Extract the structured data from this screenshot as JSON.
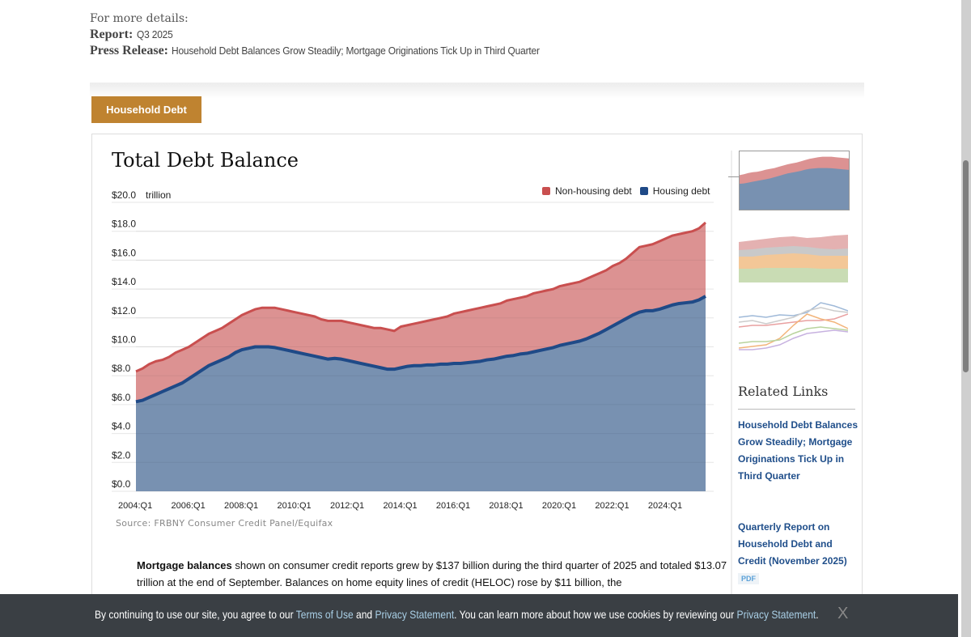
{
  "details": {
    "intro": "For more details:",
    "report_label": "Report:",
    "report_value": "Q3 2025",
    "press_label": "Press Release:",
    "press_value": "Household Debt Balances Grow Steadily; Mortgage Originations Tick Up in Third Quarter"
  },
  "tab": {
    "label": "Household Debt",
    "color": "#bf8330"
  },
  "chart_data": {
    "type": "area",
    "stacked": true,
    "title": "Total Debt Balance",
    "ylabel": "trillion",
    "yunit_prefix": "$",
    "ylim": [
      0,
      20
    ],
    "yticks": [
      "$0.0",
      "$2.0",
      "$4.0",
      "$6.0",
      "$8.0",
      "$10.0",
      "$12.0",
      "$14.0",
      "$16.0",
      "$18.0",
      "$20.0"
    ],
    "ytick_values": [
      0,
      2,
      4,
      6,
      8,
      10,
      12,
      14,
      16,
      18,
      20
    ],
    "xtick_labels": [
      "2004:Q1",
      "2006:Q1",
      "2008:Q1",
      "2010:Q1",
      "2012:Q1",
      "2014:Q1",
      "2016:Q1",
      "2018:Q1",
      "2020:Q1",
      "2022:Q1",
      "2024:Q1"
    ],
    "xtick_index": [
      0,
      8,
      16,
      24,
      32,
      40,
      48,
      56,
      64,
      72,
      80
    ],
    "x_start": "2004:Q1",
    "x_end": "2025:Q3",
    "grid": true,
    "legend_position": "top-right",
    "series": [
      {
        "name": "Non-housing debt",
        "color": "#c94f4f",
        "fill": "#dc9292",
        "total_values": [
          8.3,
          8.5,
          8.8,
          9.0,
          9.1,
          9.3,
          9.6,
          9.8,
          10.0,
          10.3,
          10.6,
          10.9,
          11.1,
          11.3,
          11.6,
          11.9,
          12.2,
          12.4,
          12.6,
          12.7,
          12.7,
          12.7,
          12.6,
          12.5,
          12.4,
          12.3,
          12.2,
          12.1,
          11.9,
          11.8,
          11.8,
          11.8,
          11.7,
          11.6,
          11.5,
          11.4,
          11.3,
          11.3,
          11.2,
          11.1,
          11.4,
          11.5,
          11.6,
          11.7,
          11.8,
          11.9,
          12.0,
          12.1,
          12.3,
          12.4,
          12.5,
          12.6,
          12.7,
          12.8,
          12.9,
          13.0,
          13.2,
          13.3,
          13.4,
          13.5,
          13.7,
          13.8,
          13.9,
          14.0,
          14.2,
          14.3,
          14.4,
          14.5,
          14.7,
          14.9,
          15.1,
          15.3,
          15.6,
          15.8,
          16.1,
          16.5,
          16.9,
          17.0,
          17.1,
          17.3,
          17.5,
          17.7,
          17.8,
          17.9,
          18.0,
          18.2,
          18.6
        ]
      },
      {
        "name": "Housing debt",
        "color": "#1f4a87",
        "fill": "#7891b1",
        "values": [
          6.2,
          6.3,
          6.5,
          6.7,
          6.9,
          7.1,
          7.3,
          7.5,
          7.8,
          8.1,
          8.4,
          8.7,
          8.9,
          9.1,
          9.3,
          9.6,
          9.8,
          9.9,
          10.0,
          10.0,
          10.0,
          9.95,
          9.85,
          9.75,
          9.65,
          9.55,
          9.45,
          9.35,
          9.25,
          9.15,
          9.2,
          9.15,
          9.05,
          8.95,
          8.85,
          8.75,
          8.65,
          8.55,
          8.45,
          8.45,
          8.55,
          8.65,
          8.7,
          8.7,
          8.75,
          8.75,
          8.8,
          8.8,
          8.85,
          8.85,
          8.9,
          8.95,
          9.0,
          9.1,
          9.15,
          9.25,
          9.35,
          9.4,
          9.5,
          9.55,
          9.65,
          9.75,
          9.85,
          9.95,
          10.1,
          10.2,
          10.3,
          10.4,
          10.55,
          10.75,
          10.95,
          11.2,
          11.45,
          11.7,
          11.95,
          12.2,
          12.4,
          12.5,
          12.5,
          12.6,
          12.75,
          12.9,
          13.0,
          13.05,
          13.1,
          13.25,
          13.5
        ]
      }
    ],
    "source": "Source: FRBNY Consumer Credit Panel/Equifax"
  },
  "body": {
    "bold_lead": "Mortgage balances",
    "text": " shown on consumer credit reports grew by $137 billion during the third quarter of 2025 and totaled $13.07 trillion at the end of September. Balances on home equity lines of credit (HELOC) rose by $11 billion, the"
  },
  "sidebar": {
    "thumbnails": [
      {
        "name": "total-debt-balance",
        "active": true
      },
      {
        "name": "debt-composition",
        "active": false
      },
      {
        "name": "line-series",
        "active": false
      }
    ],
    "related_title": "Related Links",
    "links": [
      {
        "label": "Household Debt Balances Grow Steadily; Mortgage Originations Tick Up in Third Quarter"
      },
      {
        "label": "Quarterly Report on Household Debt and Credit (November 2025)",
        "badge": "PDF"
      }
    ]
  },
  "cookie": {
    "t1": "By continuing to use our site, you agree to our ",
    "link1": "Terms of Use",
    "t2": " and ",
    "link2": "Privacy Statement",
    "t3": ". You can learn more about how we use cookies by reviewing our ",
    "link3": "Privacy Statement",
    "t4": ".",
    "close": "X"
  }
}
